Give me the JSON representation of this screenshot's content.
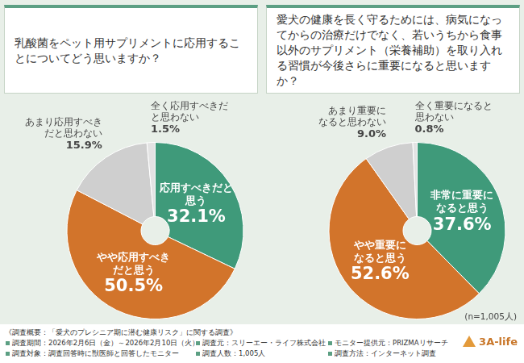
{
  "chart_data": [
    {
      "type": "doughnut",
      "title": "乳酸菌をペット用サプリメントに応用することについてどう思いますか？",
      "categories": [
        "応用すべきだと思う",
        "やや応用すべきだと思う",
        "あまり応用すべきだと思わない",
        "全く応用すべきだと思わない"
      ],
      "values": [
        32.1,
        50.5,
        15.9,
        1.5
      ],
      "value_labels": [
        "32.1%",
        "50.5%",
        "15.9%",
        "1.5%"
      ],
      "colors": [
        "#3f9a7a",
        "#d2742b",
        "#cfcfcf",
        "#e3e3e3"
      ],
      "data_labels": true
    },
    {
      "type": "doughnut",
      "title": "愛犬の健康を長く守るためには、病気になってからの治療だけでなく、若いうちから食事以外のサプリメント（栄養補助）を取り入れる習慣が今後さらに重要になると思いますか？",
      "categories": [
        "非常に重要になると思う",
        "やや重要になると思う",
        "あまり重要になると思わない",
        "全く重要になると思わない"
      ],
      "values": [
        37.6,
        52.6,
        9.0,
        0.8
      ],
      "value_labels": [
        "37.6%",
        "52.6%",
        "9.0%",
        "0.8%"
      ],
      "colors": [
        "#3f9a7a",
        "#d2742b",
        "#cfcfcf",
        "#e3e3e3"
      ],
      "data_labels": true,
      "annotations": [
        "(n=1,005人)"
      ]
    }
  ],
  "footer": {
    "heading": "《調査概要：「愛犬のプレシニア期に潜む健康リスク」に関する調査》",
    "items": [
      "調査期間：2026年2月6日（金）～2026年2月10日（火）",
      "調査元：スリーエー・ライフ株式会社",
      "モニター提供元：PRIZMAリサーチ",
      "調査対象：調査回答時に獣医師と回答したモニター",
      "調査人数：1,005人",
      "調査方法：インターネット調査"
    ],
    "logo": "3A-life"
  }
}
